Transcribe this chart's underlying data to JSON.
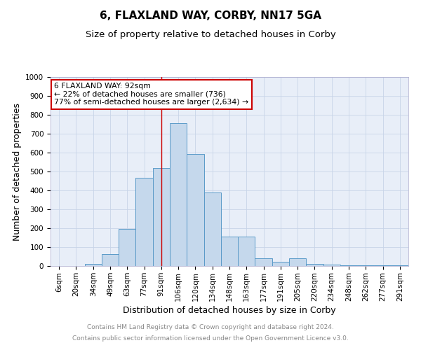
{
  "title": "6, FLAXLAND WAY, CORBY, NN17 5GA",
  "subtitle": "Size of property relative to detached houses in Corby",
  "xlabel": "Distribution of detached houses by size in Corby",
  "ylabel": "Number of detached properties",
  "categories": [
    "6sqm",
    "20sqm",
    "34sqm",
    "49sqm",
    "63sqm",
    "77sqm",
    "91sqm",
    "106sqm",
    "120sqm",
    "134sqm",
    "148sqm",
    "163sqm",
    "177sqm",
    "191sqm",
    "205sqm",
    "220sqm",
    "234sqm",
    "248sqm",
    "262sqm",
    "277sqm",
    "291sqm"
  ],
  "values": [
    0,
    0,
    12,
    63,
    195,
    468,
    520,
    757,
    592,
    390,
    155,
    155,
    40,
    22,
    40,
    10,
    8,
    3,
    2,
    5,
    5
  ],
  "bar_color": "#c5d8ec",
  "bar_edge_color": "#5a9ac8",
  "ylim": [
    0,
    1000
  ],
  "yticks": [
    0,
    100,
    200,
    300,
    400,
    500,
    600,
    700,
    800,
    900,
    1000
  ],
  "property_bar_index": 6,
  "annotation_text": "6 FLAXLAND WAY: 92sqm\n← 22% of detached houses are smaller (736)\n77% of semi-detached houses are larger (2,634) →",
  "footer_line1": "Contains HM Land Registry data © Crown copyright and database right 2024.",
  "footer_line2": "Contains public sector information licensed under the Open Government Licence v3.0.",
  "background_color": "#ffffff",
  "plot_bg_color": "#e8eef8",
  "grid_color": "#c8d4e8",
  "vline_color": "#cc0000",
  "annotation_box_color": "#ffffff",
  "annotation_box_edge": "#cc0000",
  "title_fontsize": 11,
  "subtitle_fontsize": 9.5,
  "axis_label_fontsize": 9,
  "tick_fontsize": 7.5,
  "footer_fontsize": 6.5
}
